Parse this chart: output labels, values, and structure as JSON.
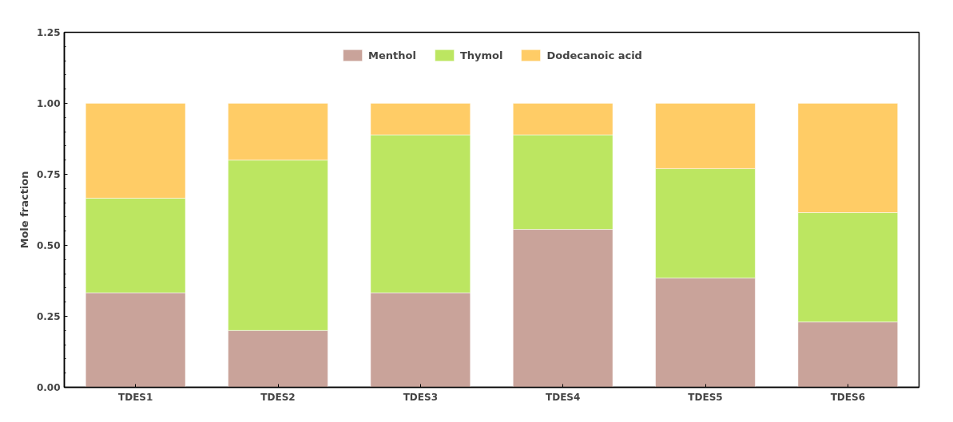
{
  "chart_data": {
    "type": "bar",
    "stacked": true,
    "ylabel": "Mole fraction",
    "categories": [
      "TDES1",
      "TDES2",
      "TDES3",
      "TDES4",
      "TDES5",
      "TDES6"
    ],
    "series": [
      {
        "name": "Menthol",
        "color": "#c9a39a",
        "values": [
          0.333,
          0.2,
          0.333,
          0.556,
          0.385,
          0.23
        ]
      },
      {
        "name": "Thymol",
        "color": "#bce661",
        "values": [
          0.333,
          0.6,
          0.556,
          0.333,
          0.385,
          0.385
        ]
      },
      {
        "name": "Dodecanoic acid",
        "color": "#ffcc66",
        "values": [
          0.334,
          0.2,
          0.111,
          0.111,
          0.23,
          0.385
        ]
      }
    ],
    "ylim": [
      0,
      1.25
    ],
    "yticks": [
      {
        "value": 0,
        "label": "0.00"
      },
      {
        "value": 0.25,
        "label": "0.25"
      },
      {
        "value": 0.5,
        "label": "0.50"
      },
      {
        "value": 0.75,
        "label": "0.75"
      },
      {
        "value": 1.0,
        "label": "1.00"
      },
      {
        "value": 1.25,
        "label": "1.25"
      }
    ],
    "grid": false,
    "legend": "top"
  }
}
